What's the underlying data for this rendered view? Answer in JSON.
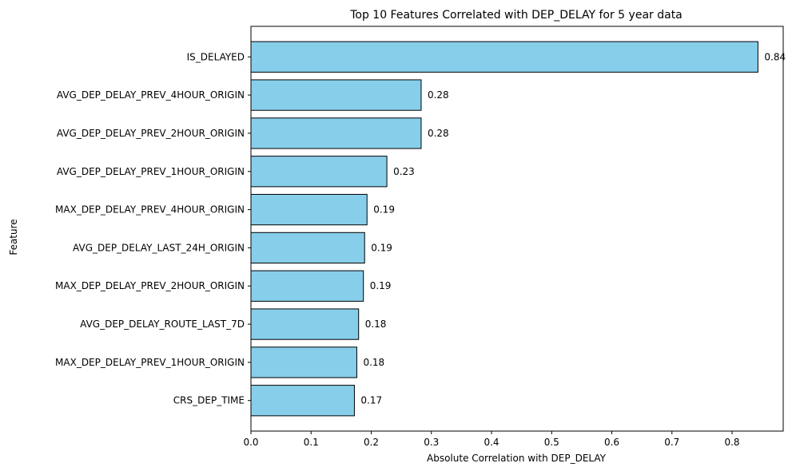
{
  "chart_data": {
    "type": "bar",
    "orientation": "horizontal",
    "title": "Top 10 Features Correlated with DEP_DELAY for 5 year data",
    "xlabel": "Absolute Correlation with DEP_DELAY",
    "ylabel": "Feature",
    "xlim": [
      0,
      0.885
    ],
    "xticks": [
      "0.0",
      "0.1",
      "0.2",
      "0.3",
      "0.4",
      "0.5",
      "0.6",
      "0.7",
      "0.8"
    ],
    "grid": false,
    "bar_color": "#87ceeb",
    "bar_edge_color": "#000000",
    "categories": [
      "IS_DELAYED",
      "AVG_DEP_DELAY_PREV_4HOUR_ORIGIN",
      "AVG_DEP_DELAY_PREV_2HOUR_ORIGIN",
      "AVG_DEP_DELAY_PREV_1HOUR_ORIGIN",
      "MAX_DEP_DELAY_PREV_4HOUR_ORIGIN",
      "AVG_DEP_DELAY_LAST_24H_ORIGIN",
      "MAX_DEP_DELAY_PREV_2HOUR_ORIGIN",
      "AVG_DEP_DELAY_ROUTE_LAST_7D",
      "MAX_DEP_DELAY_PREV_1HOUR_ORIGIN",
      "CRS_DEP_TIME"
    ],
    "values": [
      0.843,
      0.283,
      0.283,
      0.226,
      0.193,
      0.189,
      0.187,
      0.179,
      0.176,
      0.172
    ],
    "value_labels": [
      "0.84",
      "0.28",
      "0.28",
      "0.23",
      "0.19",
      "0.19",
      "0.19",
      "0.18",
      "0.18",
      "0.17"
    ]
  }
}
